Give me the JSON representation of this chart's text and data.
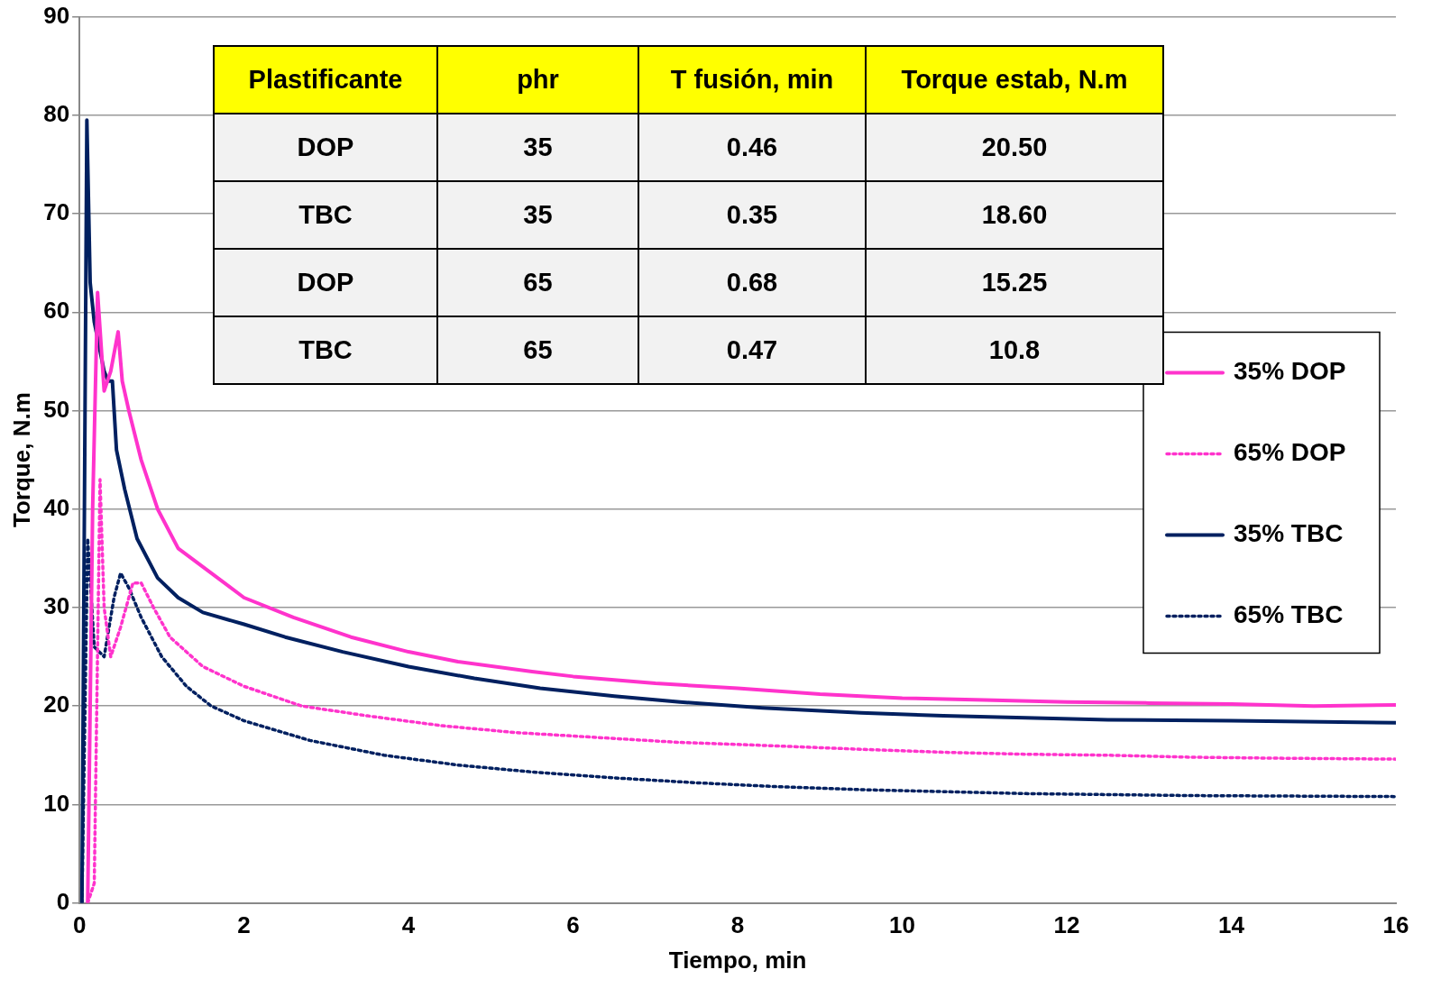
{
  "chart_data": [
    {
      "type": "line",
      "xlabel": "Tiempo, min",
      "ylabel": "Torque, N.m",
      "xlim": [
        0,
        16
      ],
      "xticks": [
        0,
        2,
        4,
        6,
        8,
        10,
        12,
        14,
        16
      ],
      "ylim": [
        0,
        90
      ],
      "yticks": [
        0,
        10,
        20,
        30,
        40,
        50,
        60,
        70,
        80,
        90
      ],
      "grid": "y",
      "legend": "right",
      "marker": "none",
      "series": [
        {
          "name": "35% DOP",
          "color": "#ff33cc",
          "line_style": "solid",
          "x": [
            0.1,
            0.16,
            0.22,
            0.3,
            0.38,
            0.47,
            0.52,
            0.6,
            0.75,
            0.95,
            1.2,
            1.6,
            2,
            2.6,
            3.3,
            4,
            4.6,
            5.5,
            6,
            7,
            8,
            9,
            10,
            11,
            12,
            13,
            14,
            15,
            16
          ],
          "values": [
            0,
            40,
            62,
            52,
            54,
            58,
            53,
            50,
            45,
            40,
            36,
            33.5,
            31,
            29,
            27,
            25.5,
            24.5,
            23.5,
            23,
            22.3,
            21.8,
            21.2,
            20.8,
            20.6,
            20.4,
            20.3,
            20.2,
            20,
            20.1
          ]
        },
        {
          "name": "65% DOP",
          "color": "#ff33cc",
          "line_style": "dotted",
          "x": [
            0.1,
            0.18,
            0.25,
            0.3,
            0.38,
            0.5,
            0.65,
            0.75,
            0.9,
            1.1,
            1.5,
            2,
            2.7,
            3.5,
            4.4,
            5.3,
            6.3,
            7.3,
            8.3,
            9.5,
            10.5,
            11.5,
            12.5,
            13.5,
            14.5,
            16
          ],
          "values": [
            0,
            2,
            43,
            30,
            25,
            28,
            32.5,
            32.5,
            30,
            27,
            24,
            22,
            20,
            19,
            18,
            17.3,
            16.8,
            16.3,
            16,
            15.6,
            15.3,
            15.1,
            15,
            14.8,
            14.7,
            14.6
          ]
        },
        {
          "name": "35% TBC",
          "color": "#002060",
          "line_style": "solid",
          "x": [
            0.03,
            0.09,
            0.13,
            0.18,
            0.3,
            0.35,
            0.4,
            0.45,
            0.55,
            0.7,
            0.95,
            1.2,
            1.5,
            2,
            2.5,
            3.2,
            4,
            4.8,
            5.6,
            6.5,
            7.3,
            8.3,
            9.5,
            10.5,
            11.5,
            12.5,
            14,
            16
          ],
          "values": [
            0,
            79.5,
            63,
            59,
            54,
            53,
            53,
            46,
            42,
            37,
            33,
            31,
            29.5,
            28.3,
            27,
            25.5,
            24,
            22.8,
            21.8,
            21,
            20.4,
            19.8,
            19.3,
            19,
            18.8,
            18.6,
            18.5,
            18.3
          ]
        },
        {
          "name": "65% TBC",
          "color": "#002060",
          "line_style": "dotted",
          "x": [
            0.03,
            0.1,
            0.18,
            0.3,
            0.42,
            0.5,
            0.6,
            0.75,
            1,
            1.3,
            1.6,
            2,
            2.8,
            3.7,
            4.6,
            5.5,
            6.5,
            7.5,
            8.5,
            9.5,
            10.5,
            11.5,
            12.5,
            13.5,
            16
          ],
          "values": [
            0,
            37,
            26,
            25,
            31,
            33.5,
            32,
            29,
            25,
            22,
            20,
            18.5,
            16.5,
            15,
            14,
            13.3,
            12.7,
            12.2,
            11.8,
            11.5,
            11.3,
            11.1,
            11,
            10.9,
            10.8
          ]
        }
      ]
    },
    {
      "type": "other",
      "annotations": [
        "Plastificante",
        "phr",
        "T fusión, min",
        "Torque estab, N.m",
        "DOP",
        "35",
        "0.46",
        "20.50",
        "TBC",
        "35",
        "0.35",
        "18.60",
        "DOP",
        "65",
        "0.68",
        "15.25",
        "TBC",
        "65",
        "0.47",
        "10.8"
      ]
    }
  ]
}
